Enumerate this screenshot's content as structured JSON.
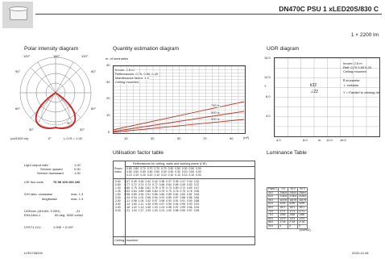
{
  "header": {
    "title": "DN470C PSU 1 xLED20S/830 C",
    "subtitle": "1 × 2200 lm"
  },
  "polar": {
    "title": "Polar intensity diagram",
    "angles_top": [
      "120°",
      "180°",
      "120°"
    ],
    "angles_left": [
      "90°",
      "60°"
    ],
    "angles_right": [
      "90°",
      "60°"
    ],
    "angle_left_30": "30°",
    "angle_right_30": "30°",
    "angle_mid_30": "30°",
    "angle_bottom": "0°",
    "unit": "(cd/1000 lm)",
    "lor": "L.O.R.= 1.00"
  },
  "quantity": {
    "title": "Quantity estimation diagram",
    "nr_label": "nr. of luminaires",
    "y_ticks": [
      "40",
      "30",
      "20",
      "10",
      "0"
    ],
    "x_ticks": [
      "10",
      "30",
      "50",
      "70",
      "90"
    ],
    "x_unit": "(m²)",
    "info": [
      "hroom: 2.8 m",
      "Reflectances: 0.70, 0.50, 0.20",
      "Maintenance factor: 1.0",
      "Ceiling mounted"
    ],
    "lines": [
      "750 lx",
      "500 lx",
      "300 lx"
    ]
  },
  "ugr": {
    "title": "UGR diagram",
    "y_ticks": [
      "16.0",
      "12.0",
      "8.0",
      "4.0"
    ],
    "x_ticks": [
      "4.0",
      "8.0",
      "12.0",
      "16.0"
    ],
    "x_unit": "m",
    "y_label": "Y",
    "info": [
      "hroom: 2.8 m",
      "Refl: 0.70 0.50 0.20",
      "Ceiling mounted"
    ],
    "legend_cross": "crosswise",
    "legend_end": "endwise",
    "legend_parallel": "= Parallel to viewing dir.",
    "marker_1": "22",
    "marker_2": "22"
  },
  "util": {
    "title": "Utilisation factor table",
    "header": "Reflectances for ceiling, walls and working plane (CIE)",
    "room_label": "Room Index",
    "refl_rows": [
      [
        "0.80",
        "0.80",
        "0.70",
        "0.70",
        "0.70",
        "0.70",
        "0.50",
        "0.50",
        "0.30",
        "0.50",
        "0.00"
      ],
      [
        "0.50",
        "0.50",
        "0.50",
        "0.50",
        "0.50",
        "0.30",
        "0.50",
        "0.30",
        "0.10",
        "0.50",
        "0.00"
      ],
      [
        "0.10",
        "0.10",
        "0.20",
        "0.20",
        "0.10",
        "0.10",
        "0.10",
        "0.10",
        "0.10",
        "0.10",
        "0.00"
      ]
    ],
    "rows": [
      [
        "0.60",
        "0.47",
        "0.49",
        "0.46",
        "0.42",
        "0.42",
        "0.38",
        "0.37",
        "0.38",
        "0.47",
        "0.34",
        "0.32"
      ],
      [
        "0.80",
        "0.77",
        "0.72",
        "0.74",
        "0.74",
        "0.72",
        "0.66",
        "0.64",
        "0.65",
        "0.49",
        "0.50",
        "0.37"
      ],
      [
        "1.00",
        "0.85",
        "0.79",
        "0.84",
        "0.81",
        "0.78",
        "0.79",
        "0.73",
        "0.69",
        "0.72",
        "0.69",
        "0.47"
      ],
      [
        "1.25",
        "0.92",
        "0.84",
        "0.89",
        "0.88",
        "0.84",
        "0.75",
        "0.79",
        "0.76",
        "0.79",
        "0.76",
        "0.55"
      ],
      [
        "1.50",
        "0.98",
        "0.89",
        "0.94",
        "0.91",
        "0.86",
        "0.84",
        "0.85",
        "0.81",
        "0.83",
        "0.81",
        "0.63"
      ],
      [
        "2.00",
        "1.04",
        "0.94",
        "1.01",
        "0.98",
        "0.94",
        "0.91",
        "0.89",
        "0.87",
        "0.88",
        "0.86",
        "0.84"
      ],
      [
        "2.50",
        "1.11",
        "0.98",
        "1.04",
        "1.02",
        "0.97",
        "0.96",
        "0.93",
        "0.91",
        "0.91",
        "0.90",
        "0.88"
      ],
      [
        "3.00",
        "1.14",
        "1.00",
        "1.11",
        "1.05",
        "0.99",
        "0.97",
        "0.96",
        "0.94",
        "0.99",
        "0.93",
        "0.91"
      ],
      [
        "4.00",
        "1.18",
        "1.02",
        "1.13",
        "1.08",
        "1.03",
        "1.03",
        "0.98",
        "0.97",
        "0.99",
        "0.96",
        "0.94"
      ],
      [
        "5.00",
        "1.21",
        "1.04",
        "1.17",
        "1.09",
        "1.03",
        "1.01",
        "1.00",
        "0.98",
        "0.99",
        "0.97",
        "0.95"
      ]
    ],
    "footer": "Ceiling mounted"
  },
  "lum": {
    "title": "Luminance Table",
    "header": [
      "Plane C",
      "0.0",
      "45.0",
      "90.0"
    ],
    "rows": [
      [
        "45.0",
        "25604",
        "25624",
        "25604"
      ],
      [
        "50.0",
        "21504",
        "21504",
        "21504"
      ],
      [
        "55.0",
        "11678",
        "11678",
        "11678"
      ],
      [
        "60.0",
        "4299",
        "4299",
        "4299"
      ],
      [
        "65.0",
        "1871",
        "1871",
        "1871"
      ],
      [
        "70.0",
        "1771",
        "1771",
        "1771"
      ],
      [
        "75.0",
        "1556",
        "1556",
        "1556"
      ],
      [
        "80.0",
        "1475",
        "1475",
        "1475"
      ],
      [
        "85.0",
        "2718",
        "2718",
        "2718"
      ],
      [
        "90.0",
        "0",
        "0",
        "0"
      ]
    ],
    "unit": "(cd/m2)"
  },
  "specs": {
    "light_output_ratio": {
      "label": "Light output ratio",
      "value": "1.00"
    },
    "service_upward": {
      "label": "Service upward",
      "value": "0.00"
    },
    "service_downward": {
      "label": "Service downward",
      "value": "1.00"
    },
    "cie_flux_code": {
      "label": "CIE flux code",
      "value": "76 98 100 100 100"
    },
    "sh_ratio": {
      "label": "S/H ratio: crosswise",
      "value": "max. 1.3"
    },
    "lengthwise": {
      "label": "lengthwise",
      "value": "max. 1.4"
    },
    "ugr_cen": {
      "label": "UGRcen (4H×8H, 0.25H)",
      "value": "21"
    },
    "en": {
      "label": "EN12464-1",
      "value": "65 deg. 3000 cd/m2"
    },
    "ute": {
      "label": "UTE71-121:",
      "value": "1.00E + 0.00T"
    }
  },
  "footer": {
    "left": "LVE2706200",
    "right": "2020-10-28"
  }
}
